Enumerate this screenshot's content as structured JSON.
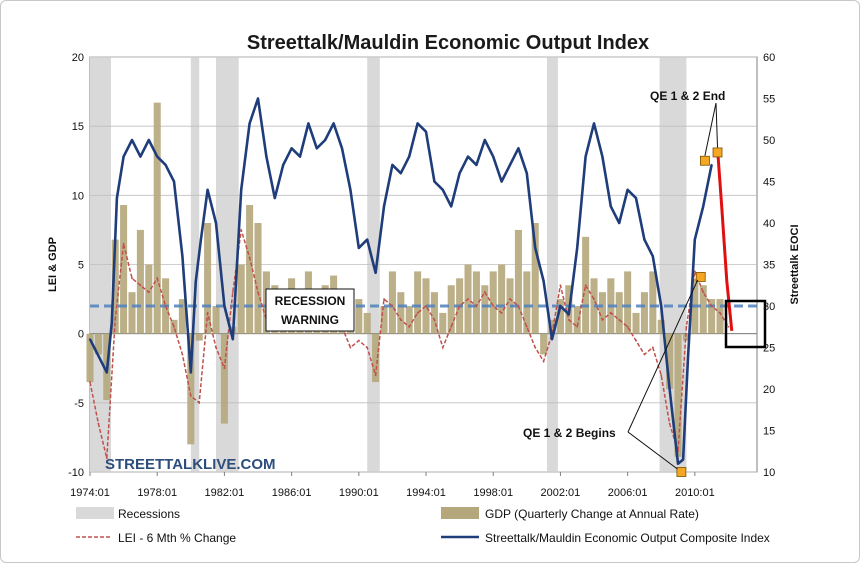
{
  "chart_data": {
    "type": "bar",
    "title": "Streettalk/Mauldin Economic Output Index",
    "ylabel_left": "LEI & GDP",
    "ylabel_right": "Streettalk EOCI",
    "ylim_left": [
      -10,
      20
    ],
    "ylim_right": [
      10,
      60
    ],
    "yticks_left": [
      "20",
      "15",
      "10",
      "5",
      "0",
      "-5",
      "-10"
    ],
    "yticks_right": [
      "60",
      "55",
      "50",
      "45",
      "40",
      "35",
      "30",
      "25",
      "20",
      "15",
      "10"
    ],
    "xticks": [
      "1974:01",
      "1978:01",
      "1982:01",
      "1986:01",
      "1990:01",
      "1994:01",
      "1998:01",
      "2002:01",
      "2006:01",
      "2010:01"
    ],
    "x_range": [
      1974.0,
      2013.7
    ],
    "recessions": [
      [
        1974.0,
        1975.25
      ],
      [
        1980.0,
        1980.5
      ],
      [
        1981.5,
        1982.85
      ],
      [
        1990.5,
        1991.25
      ],
      [
        2001.2,
        2001.85
      ],
      [
        2007.9,
        2009.5
      ]
    ],
    "recession_warning_level": 2,
    "gdp": {
      "name": "GDP (Quarterly Change at Annual Rate)",
      "color": "#b5a77c",
      "x": [
        1974.0,
        1974.5,
        1975.0,
        1975.5,
        1976.0,
        1976.5,
        1977.0,
        1977.5,
        1978.0,
        1978.5,
        1979.0,
        1979.5,
        1980.0,
        1980.5,
        1981.0,
        1981.5,
        1982.0,
        1982.5,
        1983.0,
        1983.5,
        1984.0,
        1984.5,
        1985.0,
        1985.5,
        1986.0,
        1986.5,
        1987.0,
        1987.5,
        1988.0,
        1988.5,
        1989.0,
        1989.5,
        1990.0,
        1990.5,
        1991.0,
        1991.5,
        1992.0,
        1992.5,
        1993.0,
        1993.5,
        1994.0,
        1994.5,
        1995.0,
        1995.5,
        1996.0,
        1996.5,
        1997.0,
        1997.5,
        1998.0,
        1998.5,
        1999.0,
        1999.5,
        2000.0,
        2000.5,
        2001.0,
        2001.5,
        2002.0,
        2002.5,
        2003.0,
        2003.5,
        2004.0,
        2004.5,
        2005.0,
        2005.5,
        2006.0,
        2006.5,
        2007.0,
        2007.5,
        2008.0,
        2008.5,
        2009.0,
        2009.5,
        2010.0,
        2010.5,
        2011.0,
        2011.5
      ],
      "values": [
        -3.5,
        -1.5,
        -4.8,
        6.8,
        9.3,
        3.0,
        7.5,
        5.0,
        16.7,
        4.0,
        1.0,
        2.5,
        -8.0,
        -0.5,
        8.0,
        2.0,
        -6.5,
        0.5,
        5.0,
        9.3,
        8.0,
        4.5,
        3.5,
        3.0,
        4.0,
        2.0,
        4.5,
        3.0,
        3.5,
        4.2,
        3.0,
        1.5,
        2.5,
        1.5,
        -3.5,
        2.0,
        4.5,
        3.0,
        2.0,
        4.5,
        4.0,
        3.0,
        1.5,
        3.5,
        4.0,
        5.0,
        4.5,
        3.5,
        4.5,
        5.0,
        4.0,
        7.5,
        4.5,
        8.0,
        -1.5,
        1.0,
        2.5,
        3.5,
        2.0,
        7.0,
        4.0,
        3.0,
        4.0,
        3.0,
        4.5,
        1.5,
        3.0,
        4.5,
        1.0,
        -4.0,
        -8.9,
        -0.5,
        4.0,
        3.5,
        2.5,
        2.5
      ]
    },
    "lei": {
      "name": "LEI - 6 Mth % Change",
      "color": "#c0504d",
      "x": [
        1974.0,
        1974.5,
        1975.0,
        1975.5,
        1976.0,
        1976.5,
        1977.0,
        1977.5,
        1978.0,
        1978.5,
        1979.0,
        1979.5,
        1980.0,
        1980.5,
        1981.0,
        1981.5,
        1982.0,
        1982.5,
        1983.0,
        1983.5,
        1984.0,
        1984.5,
        1985.0,
        1985.5,
        1986.0,
        1986.5,
        1987.0,
        1987.5,
        1988.0,
        1988.5,
        1989.0,
        1989.5,
        1990.0,
        1990.5,
        1991.0,
        1991.5,
        1992.0,
        1992.5,
        1993.0,
        1993.5,
        1994.0,
        1994.5,
        1995.0,
        1995.5,
        1996.0,
        1996.5,
        1997.0,
        1997.5,
        1998.0,
        1998.5,
        1999.0,
        1999.5,
        2000.0,
        2000.5,
        2001.0,
        2001.5,
        2002.0,
        2002.5,
        2003.0,
        2003.5,
        2004.0,
        2004.5,
        2005.0,
        2005.5,
        2006.0,
        2006.5,
        2007.0,
        2007.5,
        2008.0,
        2008.5,
        2009.0,
        2009.5,
        2010.0,
        2010.5,
        2011.0,
        2011.5,
        2012.0
      ],
      "values": [
        -3.5,
        -6.5,
        -9.0,
        1.0,
        6.5,
        4.0,
        3.5,
        3.0,
        4.0,
        2.0,
        0.5,
        -1.5,
        -4.5,
        -5.0,
        1.5,
        -1.0,
        -2.5,
        3.0,
        7.5,
        5.5,
        3.0,
        1.0,
        0.5,
        2.0,
        2.5,
        1.5,
        2.0,
        1.0,
        0.5,
        1.0,
        0.5,
        -1.0,
        -0.5,
        -1.0,
        -3.0,
        2.5,
        2.0,
        1.0,
        0.5,
        1.5,
        2.0,
        1.0,
        -1.0,
        0.5,
        2.0,
        2.5,
        2.0,
        3.0,
        2.0,
        1.5,
        2.5,
        2.0,
        0.5,
        -1.0,
        -2.0,
        0.0,
        3.5,
        1.0,
        0.5,
        3.5,
        2.5,
        1.0,
        1.5,
        1.0,
        0.5,
        -0.5,
        -1.5,
        -1.0,
        -3.0,
        -6.5,
        -8.5,
        0.5,
        4.5,
        3.0,
        2.0,
        1.5,
        0.5
      ]
    },
    "eoci": {
      "name": "Streettalk/Mauldin Economic Output Composite Index",
      "color": "#1f3d7a",
      "x": [
        1974.0,
        1974.5,
        1975.0,
        1975.3,
        1975.6,
        1976.0,
        1976.5,
        1977.0,
        1977.5,
        1978.0,
        1978.5,
        1979.0,
        1979.5,
        1980.0,
        1980.3,
        1980.6,
        1981.0,
        1981.5,
        1982.0,
        1982.5,
        1983.0,
        1983.5,
        1984.0,
        1984.5,
        1985.0,
        1985.5,
        1986.0,
        1986.5,
        1987.0,
        1987.5,
        1988.0,
        1988.5,
        1989.0,
        1989.5,
        1990.0,
        1990.5,
        1991.0,
        1991.5,
        1992.0,
        1992.5,
        1993.0,
        1993.5,
        1994.0,
        1994.5,
        1995.0,
        1995.5,
        1996.0,
        1996.5,
        1997.0,
        1997.5,
        1998.0,
        1998.5,
        1999.0,
        1999.5,
        2000.0,
        2000.5,
        2001.0,
        2001.5,
        2002.0,
        2002.5,
        2003.0,
        2003.5,
        2004.0,
        2004.5,
        2005.0,
        2005.5,
        2006.0,
        2006.5,
        2007.0,
        2007.5,
        2008.0,
        2008.5,
        2009.0,
        2009.3,
        2009.6,
        2010.0,
        2010.5,
        2011.0
      ],
      "values": [
        26,
        24,
        22,
        28,
        43,
        48,
        50,
        48,
        50,
        48,
        47,
        45,
        36,
        22,
        33,
        38,
        44,
        40,
        30,
        26,
        44,
        52,
        55,
        48,
        43,
        47,
        49,
        48,
        52,
        49,
        50,
        52,
        49,
        44,
        37,
        38,
        34,
        42,
        47,
        46,
        48,
        52,
        51,
        45,
        44,
        42,
        46,
        48,
        47,
        50,
        48,
        45,
        47,
        49,
        46,
        37,
        33,
        26,
        30,
        29,
        37,
        48,
        52,
        48,
        42,
        40,
        44,
        43,
        38,
        36,
        30,
        20,
        11,
        11.5,
        24,
        38,
        42,
        47
      ]
    },
    "qe_line": {
      "color": "#e01010",
      "x": [
        2011.35,
        2011.6,
        2011.9,
        2012.2
      ],
      "values": [
        49,
        42,
        33,
        27
      ]
    },
    "qe_markers": {
      "color": "#f5a623",
      "points": [
        {
          "x": 2009.2,
          "y": 10
        },
        {
          "x": 2010.35,
          "y": 33.5
        },
        {
          "x": 2010.6,
          "y": 47.5
        },
        {
          "x": 2011.35,
          "y": 48.5
        }
      ]
    },
    "annotations": {
      "recession_warning": [
        "RECESSION",
        "WARNING"
      ],
      "qe_end": "QE 1 & 2 End",
      "qe_begins": "QE 1 & 2 Begins",
      "watermark": "STREETTALKLIVE.COM"
    },
    "legend": {
      "recessions": "Recessions",
      "gdp": "GDP (Quarterly Change at Annual Rate)",
      "lei": "LEI - 6 Mth % Change",
      "eoci": "Streettalk/Mauldin Economic Output Composite Index"
    },
    "legend_placement": "bottom"
  }
}
